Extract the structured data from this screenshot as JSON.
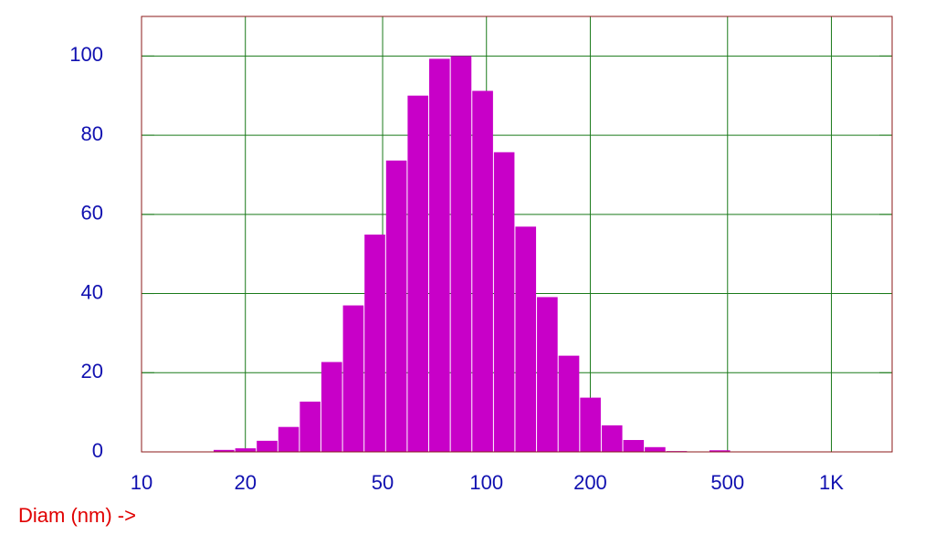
{
  "chart_data": {
    "type": "histogram",
    "x_label": "Diam (nm) ->",
    "bins": [
      16.18,
      18.69,
      21.58,
      24.92,
      28.77,
      33.22,
      38.37,
      44.31,
      51.17,
      59.08,
      68.23,
      78.79,
      90.99,
      105.1,
      121.3,
      140.1,
      161.8,
      186.9,
      215.8,
      249.2,
      287.7,
      332.2,
      383.7,
      443.1,
      511.7
    ],
    "values": [
      0.5,
      0.9,
      2.8,
      6.3,
      12.7,
      22.7,
      37,
      54.9,
      73.6,
      90,
      99.3,
      100,
      91.2,
      75.7,
      56.9,
      39.1,
      24.3,
      13.7,
      6.7,
      3,
      1.2,
      0.2,
      0,
      0.4
    ],
    "color": "#c800c8",
    "xlim": [
      10,
      1500
    ],
    "x_log": true,
    "xticks": [
      10,
      20,
      50,
      100,
      200,
      500,
      {
        "value": 1000,
        "label": "1K"
      }
    ],
    "ylim": [
      0,
      110
    ],
    "yticks": [
      0,
      20,
      40,
      60,
      80,
      100
    ],
    "grid": true
  }
}
